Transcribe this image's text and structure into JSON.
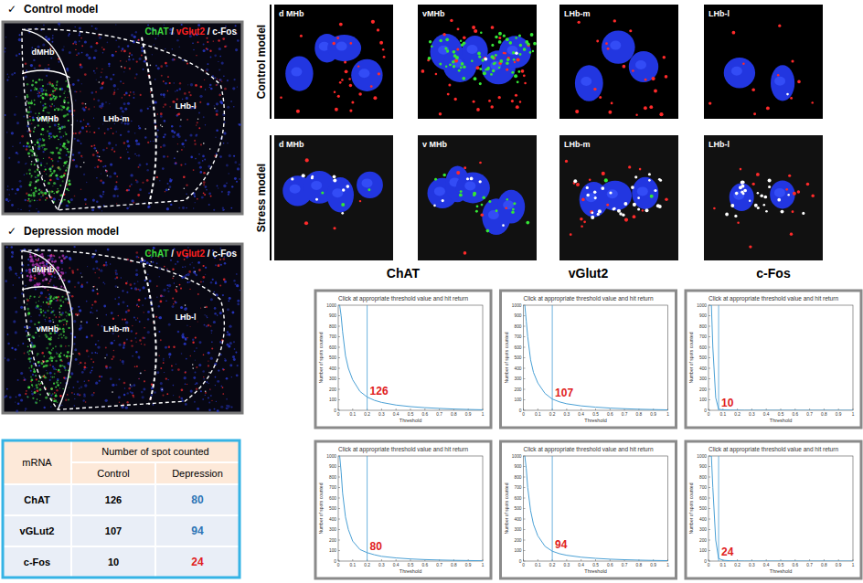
{
  "left_panels": [
    {
      "check": "✓",
      "title": "Control model",
      "legend": [
        {
          "text": "ChAT",
          "color": "#3ddc3d"
        },
        {
          "text": "vGlut2",
          "color": "#ff2020"
        },
        {
          "text": "c-Fos",
          "color": "#ffffff"
        }
      ],
      "separator": " / ",
      "regions": [
        "dMHb",
        "vMHb",
        "LHb-m",
        "LHb-l"
      ]
    },
    {
      "check": "✓",
      "title": "Depression model",
      "legend": [
        {
          "text": "ChAT",
          "color": "#3ddc3d"
        },
        {
          "text": "vGlut2",
          "color": "#ff2020"
        },
        {
          "text": "c-Fos",
          "color": "#ffffff"
        }
      ],
      "separator": " / ",
      "regions": [
        "dMHb",
        "vMHb",
        "LHb-m",
        "LHb-l"
      ]
    }
  ],
  "micrographs": {
    "rows": [
      {
        "label": "Control model",
        "cells": [
          "d MHb",
          "vMHb",
          "LHb-m",
          "LHb-l"
        ]
      },
      {
        "label": "Stress model",
        "cells": [
          "d MHb",
          "v MHb",
          "LHb-m",
          "LHb-l"
        ]
      }
    ]
  },
  "plot_columns": [
    "ChAT",
    "vGlut2",
    "c-Fos"
  ],
  "table": {
    "header": [
      "mRNA",
      "Number of spot counted"
    ],
    "subheader": [
      "Control",
      "Depression"
    ],
    "rows": [
      {
        "mRNA": "ChAT",
        "control": 126,
        "depression": 80,
        "color": "#2e75b6"
      },
      {
        "mRNA": "vGLut2",
        "control": 107,
        "depression": 94,
        "color": "#2e75b6"
      },
      {
        "mRNA": "c-Fos",
        "control": 10,
        "depression": 24,
        "color": "#e02020"
      }
    ]
  },
  "chart_data": [
    {
      "type": "line",
      "title": "Click at appropriate threshold value and hit return",
      "x_label": "Threshold",
      "y_label": "Number of spots counted",
      "x": [
        0.01,
        0.02,
        0.03,
        0.05,
        0.07,
        0.1,
        0.15,
        0.2,
        0.25,
        0.3,
        0.4,
        0.5,
        0.6,
        0.7,
        0.8,
        0.9,
        1
      ],
      "series": [
        {
          "color": "#4aa0d5",
          "values": [
            1000,
            900,
            750,
            520,
            400,
            290,
            180,
            126,
            95,
            75,
            50,
            35,
            25,
            18,
            12,
            8,
            5
          ]
        }
      ],
      "xlim": [
        0,
        1
      ],
      "ylim": [
        0,
        1000
      ],
      "xticks": [
        0,
        0.1,
        0.2,
        0.3,
        0.4,
        0.5,
        0.6,
        0.7,
        0.8,
        0.9,
        1
      ],
      "yticks": [
        0,
        100,
        200,
        300,
        400,
        500,
        600,
        700,
        800,
        900,
        1000
      ],
      "annotations": [
        {
          "x": 0.2,
          "value": 126,
          "color": "#e02020"
        }
      ]
    },
    {
      "type": "line",
      "title": "Click at appropriate threshold value and hit return",
      "x_label": "Threshold",
      "y_label": "Number of spots counted",
      "x": [
        0.01,
        0.02,
        0.03,
        0.05,
        0.07,
        0.1,
        0.15,
        0.2,
        0.25,
        0.3,
        0.4,
        0.5,
        0.6,
        0.7,
        0.8,
        0.9,
        1
      ],
      "series": [
        {
          "color": "#4aa0d5",
          "values": [
            1000,
            850,
            700,
            480,
            360,
            260,
            160,
            107,
            80,
            62,
            42,
            30,
            21,
            15,
            10,
            7,
            4
          ]
        }
      ],
      "xlim": [
        0,
        1
      ],
      "ylim": [
        0,
        1000
      ],
      "xticks": [
        0,
        0.1,
        0.2,
        0.3,
        0.4,
        0.5,
        0.6,
        0.7,
        0.8,
        0.9,
        1
      ],
      "yticks": [
        0,
        100,
        200,
        300,
        400,
        500,
        600,
        700,
        800,
        900,
        1000
      ],
      "annotations": [
        {
          "x": 0.2,
          "value": 107,
          "color": "#e02020"
        }
      ]
    },
    {
      "type": "line",
      "title": "Click at appropriate threshold value and hit return",
      "x_label": "Threshold",
      "y_label": "Number of spots counted",
      "x": [
        0.01,
        0.02,
        0.03,
        0.05,
        0.07,
        0.1,
        0.15,
        0.2,
        0.25,
        0.3,
        0.4,
        0.5,
        0.6,
        0.7,
        0.8,
        0.9,
        1
      ],
      "series": [
        {
          "color": "#4aa0d5",
          "values": [
            1000,
            1000,
            600,
            120,
            10,
            4,
            2,
            1,
            0,
            0,
            0,
            0,
            0,
            0,
            0,
            0,
            0
          ]
        }
      ],
      "xlim": [
        0,
        1
      ],
      "ylim": [
        0,
        1000
      ],
      "xticks": [
        0,
        0.1,
        0.2,
        0.3,
        0.4,
        0.5,
        0.6,
        0.7,
        0.8,
        0.9,
        1
      ],
      "yticks": [
        0,
        100,
        200,
        300,
        400,
        500,
        600,
        700,
        800,
        900,
        1000
      ],
      "annotations": [
        {
          "x": 0.07,
          "value": 10,
          "color": "#e02020"
        }
      ]
    },
    {
      "type": "line",
      "title": "Click at appropriate threshold value and hit return",
      "x_label": "Threshold",
      "y_label": "Number of spots counted",
      "x": [
        0.01,
        0.02,
        0.03,
        0.05,
        0.07,
        0.1,
        0.15,
        0.2,
        0.25,
        0.3,
        0.4,
        0.5,
        0.6,
        0.7,
        0.8,
        0.9,
        1
      ],
      "series": [
        {
          "color": "#4aa0d5",
          "values": [
            1000,
            850,
            650,
            420,
            300,
            190,
            110,
            80,
            60,
            45,
            30,
            20,
            14,
            10,
            7,
            5,
            3
          ]
        }
      ],
      "xlim": [
        0,
        1
      ],
      "ylim": [
        0,
        1000
      ],
      "xticks": [
        0,
        0.1,
        0.2,
        0.3,
        0.4,
        0.5,
        0.6,
        0.7,
        0.8,
        0.9,
        1
      ],
      "yticks": [
        0,
        100,
        200,
        300,
        400,
        500,
        600,
        700,
        800,
        900,
        1000
      ],
      "annotations": [
        {
          "x": 0.2,
          "value": 80,
          "color": "#e02020"
        }
      ]
    },
    {
      "type": "line",
      "title": "Click at appropriate threshold value and hit return",
      "x_label": "Threshold",
      "y_label": "Number of spots counted",
      "x": [
        0.01,
        0.02,
        0.03,
        0.05,
        0.07,
        0.1,
        0.15,
        0.2,
        0.25,
        0.3,
        0.4,
        0.5,
        0.6,
        0.7,
        0.8,
        0.9,
        1
      ],
      "series": [
        {
          "color": "#4aa0d5",
          "values": [
            1000,
            880,
            700,
            480,
            350,
            240,
            140,
            94,
            70,
            55,
            37,
            26,
            18,
            13,
            9,
            6,
            4
          ]
        }
      ],
      "xlim": [
        0,
        1
      ],
      "ylim": [
        0,
        1000
      ],
      "xticks": [
        0,
        0.1,
        0.2,
        0.3,
        0.4,
        0.5,
        0.6,
        0.7,
        0.8,
        0.9,
        1
      ],
      "yticks": [
        0,
        100,
        200,
        300,
        400,
        500,
        600,
        700,
        800,
        900,
        1000
      ],
      "annotations": [
        {
          "x": 0.2,
          "value": 94,
          "color": "#e02020"
        }
      ]
    },
    {
      "type": "line",
      "title": "Click at appropriate threshold value and hit return",
      "x_label": "Threshold",
      "y_label": "Number of spots counted",
      "x": [
        0.01,
        0.02,
        0.03,
        0.05,
        0.07,
        0.1,
        0.15,
        0.2,
        0.25,
        0.3,
        0.4,
        0.5,
        0.6,
        0.7,
        0.8,
        0.9,
        1
      ],
      "series": [
        {
          "color": "#4aa0d5",
          "values": [
            1000,
            1000,
            700,
            200,
            24,
            8,
            3,
            1,
            0,
            0,
            0,
            0,
            0,
            0,
            0,
            0,
            0
          ]
        }
      ],
      "xlim": [
        0,
        1
      ],
      "ylim": [
        0,
        1000
      ],
      "xticks": [
        0,
        0.1,
        0.2,
        0.3,
        0.4,
        0.5,
        0.6,
        0.7,
        0.8,
        0.9,
        1
      ],
      "yticks": [
        0,
        100,
        200,
        300,
        400,
        500,
        600,
        700,
        800,
        900,
        1000
      ],
      "annotations": [
        {
          "x": 0.07,
          "value": 24,
          "color": "#e02020"
        }
      ]
    }
  ]
}
